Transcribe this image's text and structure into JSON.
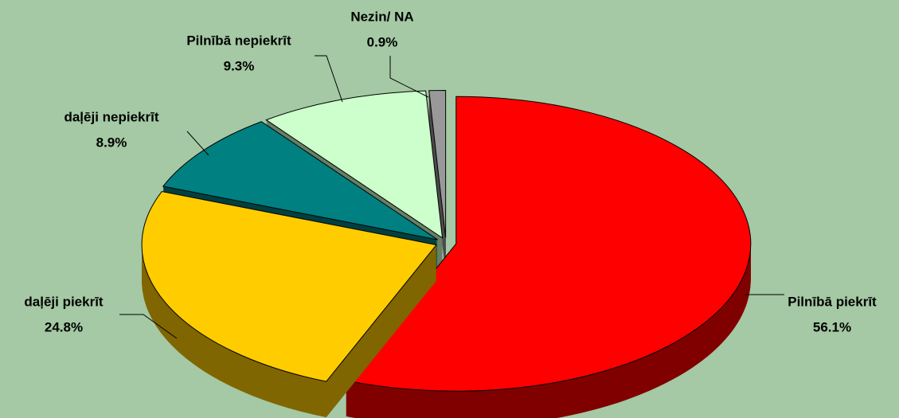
{
  "chart_data": {
    "type": "pie",
    "categories": [
      "Pilnībā piekrīt",
      "daļēji piekrīt",
      "daļēji nepiekrīt",
      "Pilnībā nepiekrīt",
      "Nezin/ NA"
    ],
    "values": [
      56.1,
      24.8,
      8.9,
      9.3,
      0.9
    ],
    "value_labels": [
      "56.1%",
      "24.8%",
      "8.9%",
      "9.3%",
      "0.9%"
    ],
    "colors": [
      "#ff0000",
      "#ffcc00",
      "#008080",
      "#ccffcc",
      "#999999"
    ]
  }
}
